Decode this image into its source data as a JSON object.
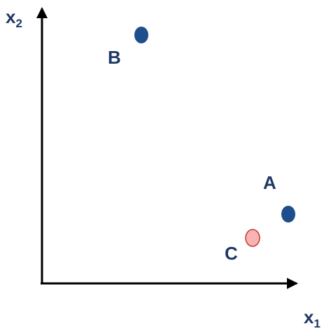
{
  "axes": {
    "x1": {
      "label": "x",
      "subscript": "1"
    },
    "x2": {
      "label": "x",
      "subscript": "2"
    }
  },
  "points": [
    {
      "label": "A"
    },
    {
      "label": "B"
    },
    {
      "label": "C"
    }
  ]
}
